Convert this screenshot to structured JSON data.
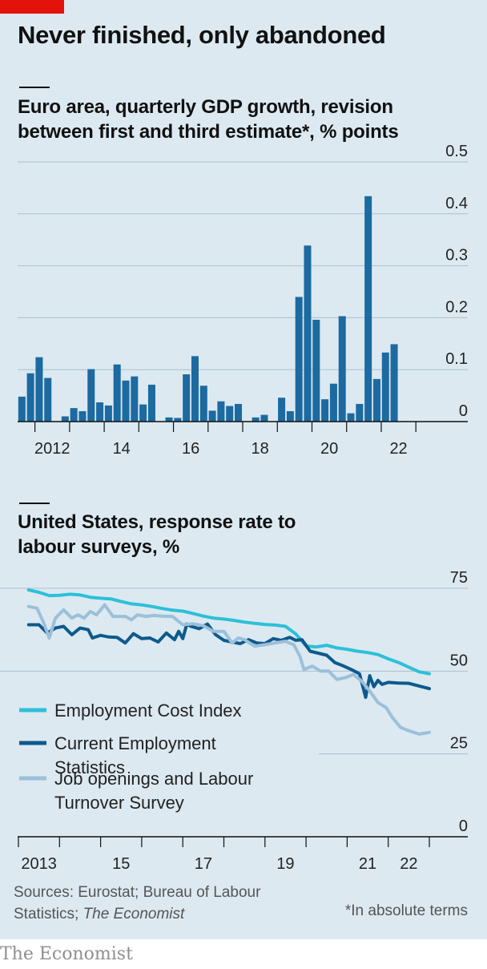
{
  "headline": "Never finished, only abandoned",
  "chart_data": [
    {
      "type": "bar",
      "title": "Euro area, quarterly GDP growth, revision\nbetween first and third estimate*, % points",
      "ylim": [
        0,
        0.5
      ],
      "yticks": [
        "0",
        "0.1",
        "0.2",
        "0.3",
        "0.4",
        "0.5"
      ],
      "xtick_labels": [
        "2012",
        "14",
        "16",
        "18",
        "20",
        "22"
      ],
      "grid": true,
      "color": "#1c6aa0",
      "categories": [
        "2011 Q3",
        "2011 Q4",
        "2012 Q1",
        "2012 Q2",
        "2012 Q3",
        "2012 Q4",
        "2013 Q1",
        "2013 Q2",
        "2013 Q3",
        "2013 Q4",
        "2014 Q1",
        "2014 Q2",
        "2014 Q3",
        "2014 Q4",
        "2015 Q1",
        "2015 Q2",
        "2015 Q3",
        "2015 Q4",
        "2016 Q1",
        "2016 Q2",
        "2016 Q3",
        "2016 Q4",
        "2017 Q1",
        "2017 Q2",
        "2017 Q3",
        "2017 Q4",
        "2018 Q1",
        "2018 Q2",
        "2018 Q3",
        "2018 Q4",
        "2019 Q1",
        "2019 Q2",
        "2019 Q3",
        "2019 Q4",
        "2020 Q1",
        "2020 Q2",
        "2020 Q3",
        "2020 Q4",
        "2021 Q1",
        "2021 Q2",
        "2021 Q3",
        "2021 Q4",
        "2022 Q1",
        "2022 Q2",
        "2022 Q3",
        "2022 Q4",
        "2023 Q1"
      ],
      "values": [
        0.048,
        0.093,
        0.124,
        0.084,
        0,
        0.01,
        0.026,
        0.02,
        0.101,
        0.037,
        0.031,
        0.11,
        0.079,
        0.087,
        0.033,
        0.071,
        0,
        0.008,
        0.007,
        0.091,
        0.126,
        0.069,
        0.021,
        0.039,
        0.03,
        0.034,
        0,
        0.008,
        0.013,
        0,
        0.046,
        0.02,
        0.24,
        0.339,
        0.196,
        0.043,
        0.073,
        0.203,
        0.016,
        0.034,
        0.434,
        0.082,
        0.133,
        0.149,
        0,
        0,
        0
      ]
    },
    {
      "type": "line",
      "title": "United States, response rate to\nlabour surveys, %",
      "ylim": [
        0,
        75
      ],
      "yticks": [
        "0",
        "25",
        "50",
        "75"
      ],
      "xtick_labels": [
        "2013",
        "15",
        "17",
        "19",
        "21",
        "22"
      ],
      "x_range": [
        2013,
        2023
      ],
      "grid": true,
      "legend_position": "bottom-left",
      "series": [
        {
          "name": "Employment Cost Index",
          "color": "#2dc0d8",
          "x": [
            2013.25,
            2013.5,
            2013.75,
            2014.0,
            2014.25,
            2014.5,
            2014.75,
            2015.0,
            2015.25,
            2015.5,
            2015.75,
            2016.0,
            2016.25,
            2016.5,
            2016.75,
            2017.0,
            2017.25,
            2017.5,
            2017.75,
            2018.0,
            2018.25,
            2018.5,
            2018.75,
            2019.0,
            2019.25,
            2019.5,
            2019.75,
            2020.0,
            2020.25,
            2020.5,
            2020.75,
            2021.0,
            2021.25,
            2021.5,
            2021.75,
            2022.0,
            2022.25,
            2022.5,
            2022.75,
            2023.0
          ],
          "values": [
            74.5,
            73.8,
            72.8,
            72.9,
            73.2,
            73.0,
            72.3,
            72.0,
            71.8,
            71.0,
            70.3,
            70.0,
            69.5,
            68.9,
            68.4,
            68.1,
            67.4,
            66.6,
            66.0,
            65.7,
            65.3,
            64.8,
            64.4,
            64.1,
            63.9,
            63.5,
            61.2,
            57.6,
            57.3,
            57.8,
            57.0,
            56.6,
            56.0,
            55.6,
            55.0,
            53.7,
            52.6,
            51.2,
            49.8,
            49.2
          ]
        },
        {
          "name": "Current Employment Statistics",
          "color": "#0d5a8c",
          "x": [
            2013.25,
            2013.5,
            2013.7,
            2013.9,
            2014.1,
            2014.3,
            2014.5,
            2014.7,
            2014.8,
            2015.0,
            2015.2,
            2015.4,
            2015.6,
            2015.8,
            2016.0,
            2016.2,
            2016.4,
            2016.6,
            2016.8,
            2016.9,
            2017.0,
            2017.1,
            2017.2,
            2017.4,
            2017.6,
            2017.8,
            2018.0,
            2018.2,
            2018.4,
            2018.6,
            2018.8,
            2019.0,
            2019.2,
            2019.4,
            2019.6,
            2019.75,
            2019.9,
            2020.1,
            2020.3,
            2020.5,
            2020.7,
            2020.9,
            2021.1,
            2021.3,
            2021.45,
            2021.55,
            2021.65,
            2021.75,
            2021.85,
            2022.0,
            2022.25,
            2022.5,
            2022.75,
            2023.0
          ],
          "values": [
            64.0,
            64.0,
            61.5,
            63.0,
            63.5,
            61.0,
            63.0,
            62.5,
            60.0,
            60.8,
            60.3,
            60.2,
            58.5,
            61.3,
            59.8,
            60.0,
            58.8,
            61.5,
            59.5,
            62.0,
            59.8,
            64.2,
            63.5,
            62.8,
            64.2,
            61.0,
            59.3,
            58.8,
            58.3,
            59.5,
            58.5,
            58.3,
            59.8,
            59.3,
            60.2,
            59.3,
            59.5,
            56.0,
            55.4,
            54.8,
            52.6,
            51.6,
            50.5,
            49.2,
            42.1,
            48.6,
            45.3,
            47.2,
            46.0,
            46.6,
            46.4,
            46.3,
            45.5,
            44.7
          ]
        },
        {
          "name": "Job openings and Labour Turnover Survey",
          "color": "#9cc0d9",
          "x": [
            2013.25,
            2013.45,
            2013.6,
            2013.75,
            2013.9,
            2014.1,
            2014.3,
            2014.45,
            2014.6,
            2014.75,
            2014.9,
            2015.1,
            2015.3,
            2015.45,
            2015.6,
            2015.75,
            2015.9,
            2016.1,
            2016.3,
            2016.5,
            2016.75,
            2017.0,
            2017.25,
            2017.5,
            2017.75,
            2018.0,
            2018.2,
            2018.35,
            2018.5,
            2018.75,
            2019.0,
            2019.25,
            2019.5,
            2019.7,
            2019.85,
            2019.95,
            2020.15,
            2020.35,
            2020.55,
            2020.75,
            2020.95,
            2021.15,
            2021.35,
            2021.55,
            2021.75,
            2021.95,
            2022.1,
            2022.3,
            2022.5,
            2022.75,
            2023.0
          ],
          "values": [
            69.5,
            69.0,
            65.0,
            60.0,
            66.0,
            68.5,
            66.0,
            67.0,
            66.0,
            68.0,
            67.0,
            70.0,
            66.5,
            66.5,
            66.5,
            65.5,
            67.0,
            66.5,
            66.8,
            66.6,
            66.5,
            64.0,
            64.3,
            63.7,
            62.0,
            62.0,
            58.5,
            60.0,
            59.5,
            57.5,
            58.0,
            58.5,
            59.0,
            58.0,
            54.5,
            50.5,
            51.5,
            50.0,
            50.0,
            47.5,
            48.0,
            49.0,
            47.0,
            44.0,
            40.5,
            39.0,
            36.0,
            33.0,
            32.0,
            31.0,
            31.5
          ]
        }
      ]
    }
  ],
  "footer": {
    "sources_prefix": "Sources: Eurostat; Bureau of Labour Statistics; ",
    "sources_publication": "The Economist",
    "note": "*In absolute terms",
    "brand": "The Economist"
  }
}
